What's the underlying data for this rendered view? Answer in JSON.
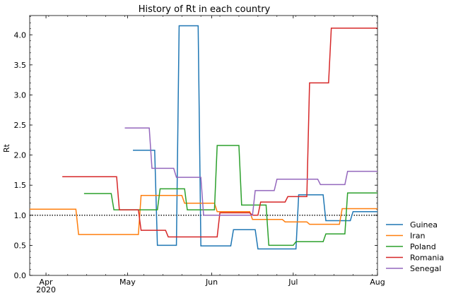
{
  "chart_data": {
    "type": "line",
    "title": "History of Rt in each country",
    "xlabel": "",
    "ylabel": "Rt",
    "x_unit": "date",
    "xlim": [
      "2020-03-26",
      "2020-08-01"
    ],
    "ylim": [
      0,
      4.32
    ],
    "yticks": [
      0.0,
      0.5,
      1.0,
      1.5,
      2.0,
      2.5,
      3.0,
      3.5,
      4.0
    ],
    "ytick_labels": [
      "0.0",
      "0.5",
      "1.0",
      "1.5",
      "2.0",
      "2.5",
      "3.0",
      "3.5",
      "4.0"
    ],
    "xticks": [
      {
        "date": "2020-04-01",
        "label": "Apr",
        "sublabel": "2020"
      },
      {
        "date": "2020-05-01",
        "label": "May",
        "sublabel": ""
      },
      {
        "date": "2020-06-01",
        "label": "Jun",
        "sublabel": ""
      },
      {
        "date": "2020-07-01",
        "label": "Jul",
        "sublabel": ""
      },
      {
        "date": "2020-08-01",
        "label": "Aug",
        "sublabel": ""
      }
    ],
    "reference_line": {
      "y": 1.0,
      "style": "dotted",
      "color": "#000000"
    },
    "grid": false,
    "legend_placement": "outside-right-bottom",
    "series": [
      {
        "name": "Guinea",
        "color": "#1f77b4",
        "points": [
          [
            "2020-05-03",
            2.08
          ],
          [
            "2020-05-11",
            2.08
          ],
          [
            "2020-05-12",
            0.5
          ],
          [
            "2020-05-19",
            0.5
          ],
          [
            "2020-05-20",
            4.15
          ],
          [
            "2020-05-27",
            4.15
          ],
          [
            "2020-05-28",
            0.49
          ],
          [
            "2020-06-08",
            0.49
          ],
          [
            "2020-06-09",
            0.76
          ],
          [
            "2020-06-17",
            0.76
          ],
          [
            "2020-06-18",
            0.44
          ],
          [
            "2020-07-02",
            0.44
          ],
          [
            "2020-07-03",
            1.34
          ],
          [
            "2020-07-12",
            1.34
          ],
          [
            "2020-07-13",
            0.91
          ],
          [
            "2020-07-22",
            0.91
          ],
          [
            "2020-07-23",
            1.06
          ],
          [
            "2020-08-01",
            1.06
          ]
        ]
      },
      {
        "name": "Iran",
        "color": "#ff7f0e",
        "points": [
          [
            "2020-03-26",
            1.1
          ],
          [
            "2020-04-12",
            1.1
          ],
          [
            "2020-04-13",
            0.68
          ],
          [
            "2020-05-05",
            0.68
          ],
          [
            "2020-05-06",
            1.33
          ],
          [
            "2020-05-21",
            1.33
          ],
          [
            "2020-05-22",
            1.2
          ],
          [
            "2020-06-02",
            1.2
          ],
          [
            "2020-06-03",
            1.06
          ],
          [
            "2020-06-15",
            1.06
          ],
          [
            "2020-06-16",
            0.93
          ],
          [
            "2020-06-27",
            0.93
          ],
          [
            "2020-06-28",
            0.89
          ],
          [
            "2020-07-06",
            0.89
          ],
          [
            "2020-07-07",
            0.85
          ],
          [
            "2020-07-18",
            0.85
          ],
          [
            "2020-07-19",
            1.11
          ],
          [
            "2020-08-01",
            1.11
          ]
        ]
      },
      {
        "name": "Poland",
        "color": "#2ca02c",
        "points": [
          [
            "2020-04-15",
            1.36
          ],
          [
            "2020-04-25",
            1.36
          ],
          [
            "2020-04-26",
            1.09
          ],
          [
            "2020-05-12",
            1.09
          ],
          [
            "2020-05-13",
            1.44
          ],
          [
            "2020-05-22",
            1.44
          ],
          [
            "2020-05-23",
            1.09
          ],
          [
            "2020-06-02",
            1.09
          ],
          [
            "2020-06-03",
            2.16
          ],
          [
            "2020-06-11",
            2.16
          ],
          [
            "2020-06-12",
            1.17
          ],
          [
            "2020-06-21",
            1.17
          ],
          [
            "2020-06-22",
            0.5
          ],
          [
            "2020-07-01",
            0.5
          ],
          [
            "2020-07-02",
            0.56
          ],
          [
            "2020-07-12",
            0.56
          ],
          [
            "2020-07-13",
            0.69
          ],
          [
            "2020-07-20",
            0.69
          ],
          [
            "2020-07-21",
            1.37
          ],
          [
            "2020-08-01",
            1.37
          ]
        ]
      },
      {
        "name": "Romania",
        "color": "#d62728",
        "points": [
          [
            "2020-04-07",
            1.64
          ],
          [
            "2020-04-27",
            1.64
          ],
          [
            "2020-04-28",
            1.09
          ],
          [
            "2020-05-05",
            1.09
          ],
          [
            "2020-05-06",
            0.75
          ],
          [
            "2020-05-15",
            0.75
          ],
          [
            "2020-05-16",
            0.64
          ],
          [
            "2020-06-03",
            0.64
          ],
          [
            "2020-06-04",
            1.04
          ],
          [
            "2020-06-15",
            1.04
          ],
          [
            "2020-06-16",
            1.0
          ],
          [
            "2020-06-18",
            1.0
          ],
          [
            "2020-06-19",
            1.22
          ],
          [
            "2020-06-28",
            1.22
          ],
          [
            "2020-06-29",
            1.31
          ],
          [
            "2020-07-06",
            1.31
          ],
          [
            "2020-07-07",
            3.2
          ],
          [
            "2020-07-14",
            3.2
          ],
          [
            "2020-07-15",
            4.11
          ],
          [
            "2020-08-01",
            4.11
          ]
        ]
      },
      {
        "name": "Senegal",
        "color": "#9467bd",
        "points": [
          [
            "2020-04-30",
            2.45
          ],
          [
            "2020-05-09",
            2.45
          ],
          [
            "2020-05-10",
            1.78
          ],
          [
            "2020-05-18",
            1.78
          ],
          [
            "2020-05-19",
            1.63
          ],
          [
            "2020-05-28",
            1.63
          ],
          [
            "2020-05-29",
            1.0
          ],
          [
            "2020-06-16",
            1.0
          ],
          [
            "2020-06-17",
            1.41
          ],
          [
            "2020-06-24",
            1.41
          ],
          [
            "2020-06-25",
            1.6
          ],
          [
            "2020-07-10",
            1.6
          ],
          [
            "2020-07-11",
            1.51
          ],
          [
            "2020-07-20",
            1.51
          ],
          [
            "2020-07-21",
            1.73
          ],
          [
            "2020-08-01",
            1.73
          ]
        ]
      }
    ]
  }
}
